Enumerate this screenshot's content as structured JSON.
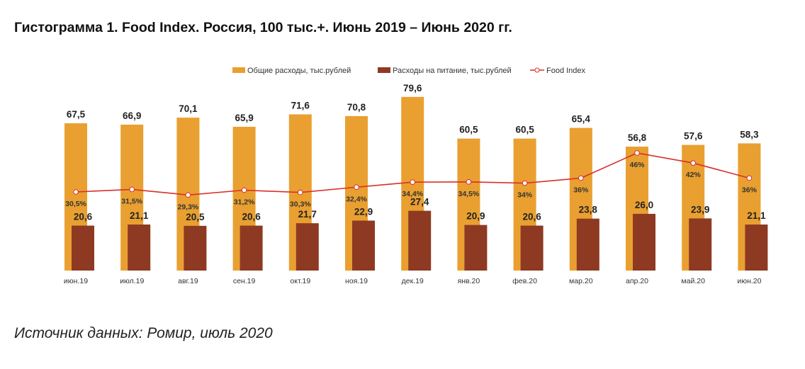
{
  "title": "Гистограмма 1. Food Index. Россия, 100 тыс.+. Июнь 2019 – Июнь 2020 гг.",
  "source": "Источник данных: Ромир, июль 2020",
  "chart_data": {
    "type": "bar",
    "title": "Гистограмма 1. Food Index. Россия, 100 тыс.+. Июнь 2019 – Июнь 2020 гг.",
    "legend_position": "top",
    "grid": false,
    "categories": [
      "июн.19",
      "июл.19",
      "авг.19",
      "сен.19",
      "окт.19",
      "ноя.19",
      "дек.19",
      "янв.20",
      "фев.20",
      "мар.20",
      "апр.20",
      "май.20",
      "июн.20"
    ],
    "series": [
      {
        "name": "Общие расходы, тыс.рублей",
        "type": "bar",
        "color": "#E9A030",
        "values": [
          67.5,
          66.9,
          70.1,
          65.9,
          71.6,
          70.8,
          79.6,
          60.5,
          60.5,
          65.4,
          56.8,
          57.6,
          58.3
        ],
        "labels": [
          "67,5",
          "66,9",
          "70,1",
          "65,9",
          "71,6",
          "70,8",
          "79,6",
          "60,5",
          "60,5",
          "65,4",
          "56,8",
          "57,6",
          "58,3"
        ]
      },
      {
        "name": "Расходы на питание, тыс.рублей",
        "type": "bar",
        "color": "#8E3A22",
        "values": [
          20.6,
          21.1,
          20.5,
          20.6,
          21.7,
          22.9,
          27.4,
          20.9,
          20.6,
          23.8,
          26.0,
          23.9,
          21.1
        ],
        "labels": [
          "20,6",
          "21,1",
          "20,5",
          "20,6",
          "21,7",
          "22,9",
          "27,4",
          "20,9",
          "20,6",
          "23,8",
          "26,0",
          "23,9",
          "21,1"
        ]
      },
      {
        "name": "Food Index",
        "type": "line",
        "color": "#D9302A",
        "unit": "%",
        "values": [
          30.5,
          31.5,
          29.3,
          31.2,
          30.3,
          32.4,
          34.4,
          34.5,
          34,
          36,
          46,
          42,
          36
        ],
        "labels": [
          "30,5%",
          "31,5%",
          "29,3%",
          "31,2%",
          "30,3%",
          "32,4%",
          "34,4%",
          "34,5%",
          "34%",
          "36%",
          "46%",
          "42%",
          "36%"
        ]
      }
    ]
  }
}
